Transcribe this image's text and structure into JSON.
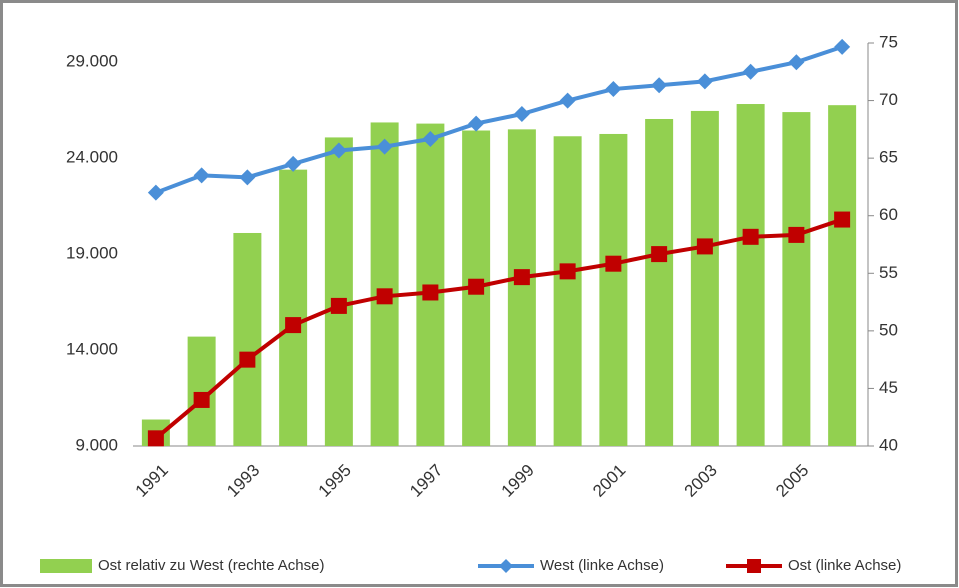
{
  "chart_data": {
    "type": "bar-line",
    "categories": [
      "1991",
      null,
      "1993",
      null,
      "1995",
      null,
      "1997",
      null,
      "1999",
      null,
      "2001",
      null,
      "2003",
      null,
      "2005",
      null
    ],
    "ylim": [
      9000,
      30000
    ],
    "yticks": [
      {
        "value": 9000,
        "label": "9.000"
      },
      {
        "value": 14000,
        "label": "14.000"
      },
      {
        "value": 19000,
        "label": "19.000"
      },
      {
        "value": 24000,
        "label": "24.000"
      },
      {
        "value": 29000,
        "label": "29.000"
      }
    ],
    "y2lim": [
      40,
      75
    ],
    "y2ticks": [
      40,
      45,
      50,
      55,
      60,
      65,
      70,
      75
    ],
    "series": [
      {
        "name": "Ost relativ zu West (rechte Achse)",
        "type": "bar",
        "axis": "y2",
        "color": "#92d050",
        "values": [
          42.3,
          49.5,
          58.5,
          64,
          66.8,
          68.1,
          68,
          67.4,
          67.5,
          66.9,
          67.1,
          68.4,
          69.1,
          69.7,
          69,
          69.6
        ]
      },
      {
        "name": "West (linke Achse)",
        "type": "line",
        "marker": "diamond",
        "color": "#4a8fd8",
        "values": [
          22200,
          23100,
          23000,
          23700,
          24400,
          24600,
          25000,
          25800,
          26300,
          27000,
          27600,
          27800,
          28000,
          28500,
          29000,
          29800
        ]
      },
      {
        "name": "Ost (linke Achse)",
        "type": "line",
        "marker": "square",
        "color": "#c00000",
        "values": [
          9400,
          11400,
          13500,
          15300,
          16300,
          16800,
          17000,
          17300,
          17800,
          18100,
          18500,
          19000,
          19400,
          19900,
          20000,
          20800
        ]
      }
    ]
  }
}
